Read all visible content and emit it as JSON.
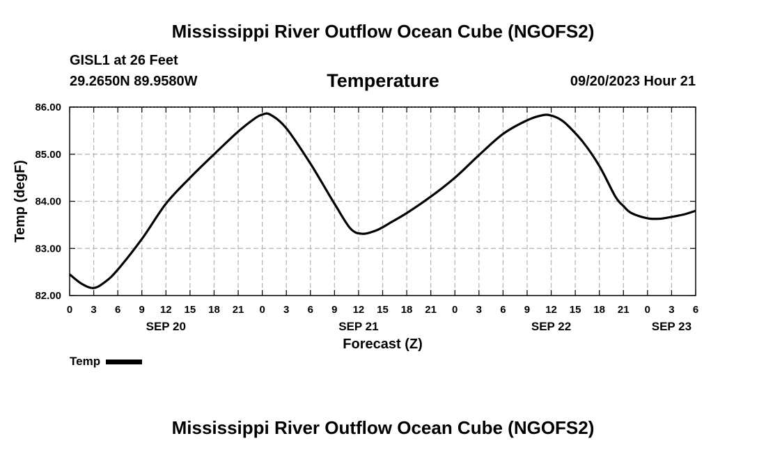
{
  "page": {
    "title": "Mississippi River Outflow Ocean Cube (NGOFS2)",
    "station": "GISL1 at 26 Feet",
    "coords": "29.2650N  89.9580W",
    "run_time": "09/20/2023 Hour 21",
    "footer_title": "Mississippi River Outflow Ocean Cube (NGOFS2)"
  },
  "legend": {
    "label": "Temp",
    "color": "#000000"
  },
  "chart_data": {
    "type": "line",
    "title": "Temperature",
    "xlabel": "Forecast (Z)",
    "ylabel": "Temp (degF)",
    "xlim": [
      0,
      78
    ],
    "ylim": [
      82,
      86
    ],
    "y_ticks": [
      82,
      83,
      84,
      85,
      86
    ],
    "y_tick_labels": [
      "82.00",
      "83.00",
      "84.00",
      "85.00",
      "86.00"
    ],
    "x_ticks": [
      0,
      3,
      6,
      9,
      12,
      15,
      18,
      21,
      24,
      27,
      30,
      33,
      36,
      39,
      42,
      45,
      48,
      51,
      54,
      57,
      60,
      63,
      66,
      69,
      72,
      75,
      78
    ],
    "x_tick_labels": [
      "0",
      "3",
      "6",
      "9",
      "12",
      "15",
      "18",
      "21",
      "0",
      "3",
      "6",
      "9",
      "12",
      "15",
      "18",
      "21",
      "0",
      "3",
      "6",
      "9",
      "12",
      "15",
      "18",
      "21",
      "0",
      "3",
      "6"
    ],
    "date_labels": [
      {
        "x": 12,
        "label": "SEP 20"
      },
      {
        "x": 36,
        "label": "SEP 21"
      },
      {
        "x": 60,
        "label": "SEP 22"
      },
      {
        "x": 75,
        "label": "SEP 23"
      }
    ],
    "grid": true,
    "series": [
      {
        "name": "Temp",
        "x": [
          0,
          1.5,
          3,
          4.5,
          6,
          9,
          12,
          15,
          18,
          21,
          23,
          24,
          25,
          27,
          30,
          33,
          35,
          36.5,
          38,
          39,
          40,
          42,
          45,
          48,
          51,
          54,
          57,
          59,
          60,
          61,
          62,
          64,
          66,
          68,
          69,
          70,
          72,
          73.5,
          75,
          76.5,
          78
        ],
        "values": [
          82.45,
          82.25,
          82.16,
          82.3,
          82.55,
          83.2,
          83.95,
          84.5,
          85.0,
          85.48,
          85.75,
          85.84,
          85.84,
          85.55,
          84.8,
          83.95,
          83.42,
          83.31,
          83.37,
          83.45,
          83.55,
          83.75,
          84.1,
          84.5,
          84.98,
          85.43,
          85.72,
          85.83,
          85.82,
          85.75,
          85.62,
          85.25,
          84.75,
          84.1,
          83.9,
          83.75,
          83.64,
          83.63,
          83.67,
          83.72,
          83.8
        ]
      }
    ]
  }
}
